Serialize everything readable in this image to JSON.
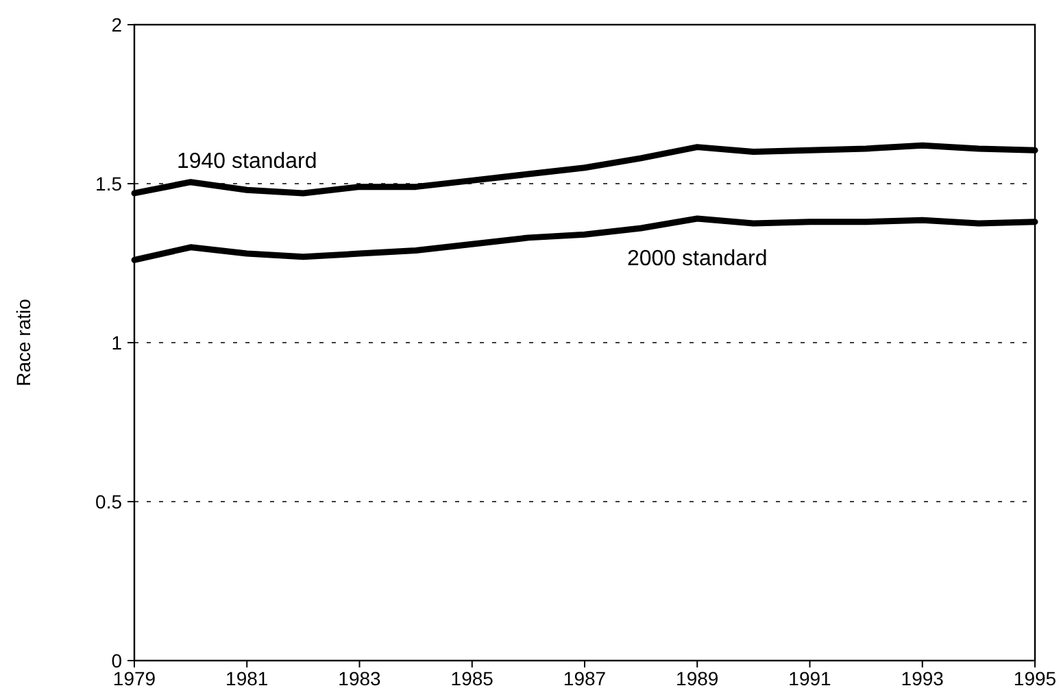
{
  "chart_data": {
    "type": "line",
    "ylabel": "Race ratio",
    "x": [
      1979,
      1980,
      1981,
      1982,
      1983,
      1984,
      1985,
      1986,
      1987,
      1988,
      1989,
      1990,
      1991,
      1992,
      1993,
      1994,
      1995
    ],
    "series": [
      {
        "name": "1940 standard",
        "color": "#000000",
        "values": [
          1.47,
          1.505,
          1.48,
          1.47,
          1.49,
          1.49,
          1.51,
          1.53,
          1.55,
          1.58,
          1.615,
          1.6,
          1.605,
          1.61,
          1.62,
          1.61,
          1.605
        ]
      },
      {
        "name": "2000 standard",
        "color": "#000000",
        "values": [
          1.26,
          1.3,
          1.28,
          1.27,
          1.28,
          1.29,
          1.31,
          1.33,
          1.34,
          1.36,
          1.39,
          1.375,
          1.38,
          1.38,
          1.385,
          1.375,
          1.38
        ]
      }
    ],
    "xlim": [
      1979,
      1995
    ],
    "xticks": [
      1979,
      1981,
      1983,
      1985,
      1987,
      1989,
      1991,
      1993,
      1995
    ],
    "ylim": [
      0,
      2
    ],
    "yticks": [
      0,
      0.5,
      1,
      1.5,
      2
    ],
    "grid": "y",
    "marker": "none",
    "line_style": "solid"
  }
}
